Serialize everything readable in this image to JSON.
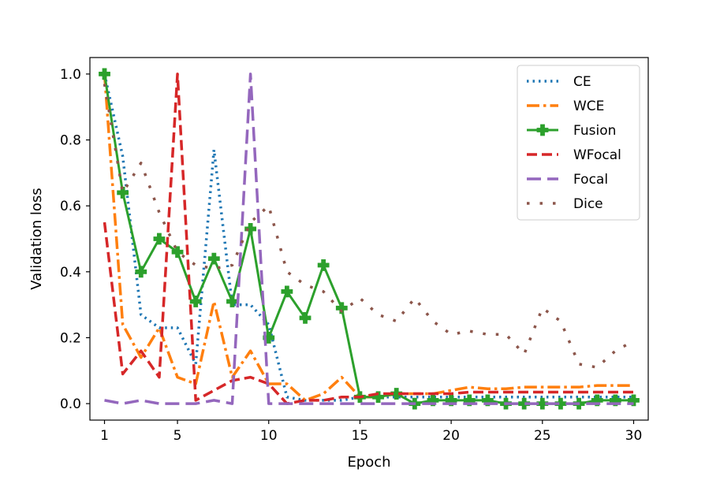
{
  "chart_data": {
    "type": "line",
    "title": "",
    "xlabel": "Epoch",
    "ylabel": "Validation loss",
    "xlim": [
      0.2,
      30.8
    ],
    "ylim": [
      -0.05,
      1.05
    ],
    "xticks": [
      1,
      5,
      10,
      15,
      20,
      25,
      30
    ],
    "yticks": [
      0.0,
      0.2,
      0.4,
      0.6,
      0.8,
      1.0
    ],
    "ytick_labels": [
      "0.0",
      "0.2",
      "0.4",
      "0.6",
      "0.8",
      "1.0"
    ],
    "grid": false,
    "legend_position": "top-right",
    "x": [
      1,
      2,
      3,
      4,
      5,
      6,
      7,
      8,
      9,
      10,
      11,
      12,
      13,
      14,
      15,
      16,
      17,
      18,
      19,
      20,
      21,
      22,
      23,
      24,
      25,
      26,
      27,
      28,
      29,
      30
    ],
    "series": [
      {
        "name": "CE",
        "color": "#1f77b4",
        "style": "dotted",
        "values": [
          1.0,
          0.75,
          0.27,
          0.23,
          0.23,
          0.12,
          0.77,
          0.3,
          0.3,
          0.24,
          0.02,
          0.01,
          0.01,
          0.01,
          0.02,
          0.02,
          0.02,
          0.02,
          0.02,
          0.02,
          0.02,
          0.02,
          0.02,
          0.02,
          0.02,
          0.02,
          0.02,
          0.02,
          0.02,
          0.02
        ]
      },
      {
        "name": "WCE",
        "color": "#ff7f0e",
        "style": "dashdot",
        "values": [
          1.0,
          0.24,
          0.14,
          0.23,
          0.08,
          0.06,
          0.31,
          0.08,
          0.16,
          0.06,
          0.06,
          0.01,
          0.03,
          0.08,
          0.02,
          0.02,
          0.03,
          0.03,
          0.03,
          0.04,
          0.05,
          0.045,
          0.045,
          0.05,
          0.05,
          0.05,
          0.05,
          0.055,
          0.055,
          0.055
        ]
      },
      {
        "name": "Fusion",
        "color": "#2ca02c",
        "style": "solid",
        "values": [
          1.0,
          0.64,
          0.4,
          0.5,
          0.46,
          0.31,
          0.44,
          0.31,
          0.53,
          0.2,
          0.34,
          0.26,
          0.42,
          0.29,
          0.02,
          0.02,
          0.03,
          0.0,
          0.01,
          0.01,
          0.01,
          0.01,
          0.0,
          0.0,
          0.0,
          0.0,
          0.0,
          0.01,
          0.01,
          0.01
        ]
      },
      {
        "name": "WFocal",
        "color": "#d62728",
        "style": "dashed",
        "values": [
          0.55,
          0.09,
          0.16,
          0.08,
          1.0,
          0.01,
          0.04,
          0.07,
          0.08,
          0.06,
          0.0,
          0.01,
          0.01,
          0.02,
          0.02,
          0.03,
          0.03,
          0.03,
          0.03,
          0.03,
          0.035,
          0.035,
          0.035,
          0.035,
          0.035,
          0.035,
          0.035,
          0.035,
          0.035,
          0.035
        ]
      },
      {
        "name": "Focal",
        "color": "#9467bd",
        "style": "longdash",
        "values": [
          0.01,
          0.0,
          0.01,
          0.0,
          0.0,
          0.0,
          0.01,
          0.0,
          1.0,
          0.0,
          0.0,
          0.0,
          0.0,
          0.0,
          0.0,
          0.0,
          0.0,
          0.0,
          0.0,
          0.0,
          0.0,
          0.0,
          0.0,
          0.0,
          0.0,
          0.0,
          0.0,
          0.0,
          0.0,
          0.0
        ]
      },
      {
        "name": "Dice",
        "color": "#8c564b",
        "style": "dotted-sparse",
        "values": [
          0.97,
          0.64,
          0.73,
          0.58,
          0.46,
          0.42,
          0.41,
          0.42,
          0.55,
          0.6,
          0.4,
          0.36,
          0.34,
          0.28,
          0.32,
          0.27,
          0.25,
          0.32,
          0.25,
          0.21,
          0.22,
          0.21,
          0.21,
          0.15,
          0.29,
          0.25,
          0.12,
          0.11,
          0.16,
          0.19
        ]
      }
    ]
  }
}
